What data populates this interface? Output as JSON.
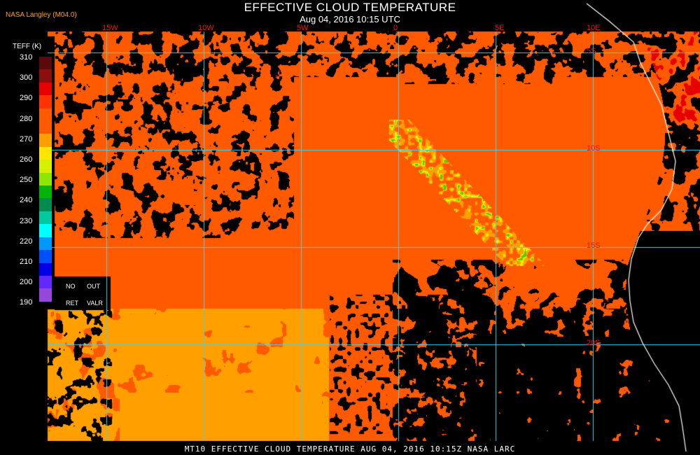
{
  "header": {
    "title": "EFFECTIVE CLOUD TEMPERATURE",
    "subtitle": "Aug 04, 2016 10:15 UTC",
    "credit": "NASA Langley (M04.0)"
  },
  "footer": "MT10  EFFECTIVE CLOUD TEMPERATURE   AUG 04, 2016 10:15Z   NASA LARC",
  "legend": {
    "title": "TEFF (K)",
    "ticks": [
      "310",
      "300",
      "290",
      "280",
      "270",
      "260",
      "250",
      "240",
      "230",
      "220",
      "210",
      "200",
      "190"
    ],
    "colors": [
      "#5a0a0a",
      "#8b0f0f",
      "#e60000",
      "#ff3300",
      "#ff5a00",
      "#ff5a00",
      "#ffa000",
      "#ffe600",
      "#d7f000",
      "#8ce600",
      "#00b400",
      "#008c50",
      "#00c8a0",
      "#00ffff",
      "#0096ff",
      "#0050ff",
      "#0000e6",
      "#6428ff",
      "#9646dc"
    ],
    "no_ret": [
      "NO",
      "RET"
    ],
    "out_valr": [
      "OUT",
      "VALR"
    ]
  },
  "grid": {
    "lon_labels": [
      "15W",
      "10W",
      "5W",
      "0",
      "5E",
      "10E"
    ],
    "lat_labels": [
      "5S",
      "10S",
      "15S",
      "20S"
    ]
  }
}
